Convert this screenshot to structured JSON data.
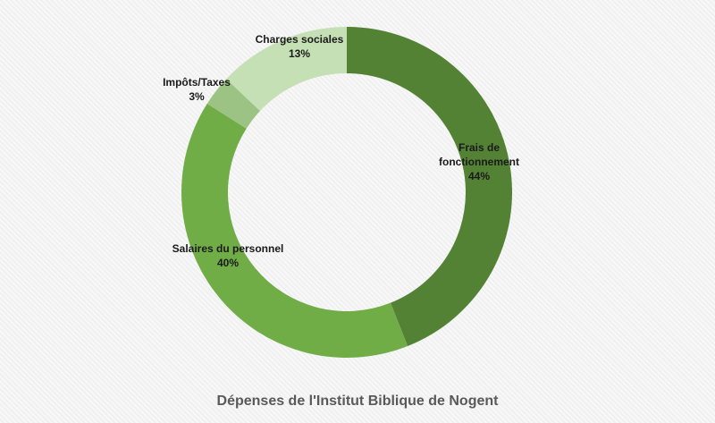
{
  "chart_data": {
    "type": "pie",
    "donut": true,
    "title": "Dépenses de l'Institut Biblique de Nogent",
    "slices": [
      {
        "name": "Frais de fonctionnement",
        "label_lines": [
          "Frais de",
          "fonctionnement"
        ],
        "value": 44,
        "value_label": "44%",
        "color": "#548235"
      },
      {
        "name": "Salaires du personnel",
        "label_lines": [
          "Salaires du personnel"
        ],
        "value": 40,
        "value_label": "40%",
        "color": "#70ad47"
      },
      {
        "name": "Impôts/Taxes",
        "label_lines": [
          "Impôts/Taxes"
        ],
        "value": 3,
        "value_label": "3%",
        "color": "#9dc384"
      },
      {
        "name": "Charges sociales",
        "label_lines": [
          "Charges sociales"
        ],
        "value": 13,
        "value_label": "13%",
        "color": "#c5e0b4"
      }
    ]
  }
}
